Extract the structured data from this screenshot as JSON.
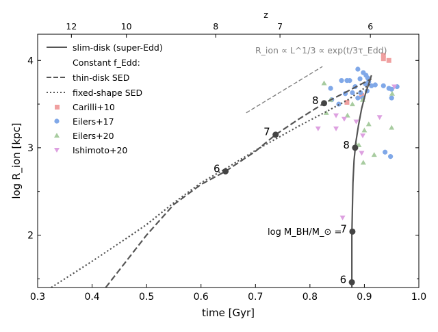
{
  "chart_data": {
    "type": "line",
    "xlabel": "time [Gyr]",
    "ylabel": "log R_ion [kpc]",
    "xlim": [
      0.3,
      1.0
    ],
    "ylim": [
      1.4,
      4.3
    ],
    "x_ticks": [
      "0.3",
      "0.4",
      "0.5",
      "0.6",
      "0.7",
      "0.8",
      "0.9",
      "1.0"
    ],
    "x_tick_values": [
      0.3,
      0.4,
      0.5,
      0.6,
      0.7,
      0.8,
      0.9,
      1.0
    ],
    "y_ticks": [
      "2",
      "3",
      "4"
    ],
    "y_tick_values": [
      2,
      3,
      4
    ],
    "top_axis": {
      "label": "z",
      "ticks": [
        {
          "label": "12",
          "time": 0.362
        },
        {
          "label": "10",
          "time": 0.463
        },
        {
          "label": "8",
          "time": 0.627
        },
        {
          "label": "7",
          "time": 0.745
        },
        {
          "label": "6",
          "time": 0.911
        }
      ]
    },
    "annotation": "R_ion ∝ L^1/3 ∝ exp(t/3τ_Edd)",
    "annotation_line": [
      [
        0.683,
        3.4
      ],
      [
        0.823,
        3.93
      ]
    ],
    "legend": {
      "slim": "slim-disk (super-Edd)",
      "header": "Constant f_Edd:",
      "thin": "thin-disk SED",
      "fixed": "fixed-shape SED",
      "carilli": "Carilli+10",
      "eilers17": "Eilers+17",
      "eilers20": "Eilers+20",
      "ishimoto": "Ishimoto+20"
    },
    "mass_axis_label": "log M_BH/M_⊙ =",
    "series": [
      {
        "name": "slim-disk (super-Edd)",
        "style": "solid",
        "color": "#555555",
        "points": [
          [
            0.877,
            1.4
          ],
          [
            0.877,
            1.7
          ],
          [
            0.877,
            2.0
          ],
          [
            0.878,
            2.3
          ],
          [
            0.879,
            2.6
          ],
          [
            0.881,
            2.85
          ],
          [
            0.884,
            3.05
          ],
          [
            0.889,
            3.25
          ],
          [
            0.895,
            3.45
          ],
          [
            0.902,
            3.62
          ],
          [
            0.909,
            3.75
          ],
          [
            0.913,
            3.83
          ]
        ]
      },
      {
        "name": "thin-disk SED",
        "style": "dashed",
        "color": "#555555",
        "points": [
          [
            0.425,
            1.4
          ],
          [
            0.46,
            1.68
          ],
          [
            0.5,
            2.0
          ],
          [
            0.55,
            2.35
          ],
          [
            0.6,
            2.58
          ],
          [
            0.645,
            2.73
          ],
          [
            0.7,
            2.96
          ],
          [
            0.737,
            3.15
          ],
          [
            0.78,
            3.33
          ],
          [
            0.826,
            3.51
          ],
          [
            0.87,
            3.65
          ],
          [
            0.913,
            3.79
          ]
        ]
      },
      {
        "name": "fixed-shape SED",
        "style": "dotted",
        "color": "#555555",
        "points": [
          [
            0.325,
            1.4
          ],
          [
            0.4,
            1.7
          ],
          [
            0.46,
            1.95
          ],
          [
            0.5,
            2.12
          ],
          [
            0.55,
            2.37
          ],
          [
            0.6,
            2.6
          ],
          [
            0.645,
            2.76
          ],
          [
            0.7,
            2.97
          ],
          [
            0.737,
            3.1
          ],
          [
            0.78,
            3.25
          ],
          [
            0.826,
            3.4
          ],
          [
            0.87,
            3.55
          ],
          [
            0.913,
            3.74
          ]
        ]
      }
    ],
    "mass_markers": [
      {
        "label": "6",
        "x": 0.645,
        "y": 2.73
      },
      {
        "label": "7",
        "x": 0.737,
        "y": 3.15
      },
      {
        "label": "8",
        "x": 0.826,
        "y": 3.51
      },
      {
        "label": "6",
        "x": 0.877,
        "y": 1.46
      },
      {
        "label": "7",
        "x": 0.878,
        "y": 2.04
      },
      {
        "label": "8",
        "x": 0.883,
        "y": 3.0
      }
    ],
    "scatter": [
      {
        "name": "Carilli+10",
        "color": "#f0a0a0",
        "marker": "square",
        "points": [
          [
            0.935,
            4.06
          ],
          [
            0.945,
            4.0
          ],
          [
            0.935,
            4.02
          ],
          [
            0.868,
            3.52
          ],
          [
            0.895,
            3.6
          ]
        ]
      },
      {
        "name": "Eilers+17",
        "color": "#80a8e8",
        "marker": "circle",
        "points": [
          [
            0.888,
            3.9
          ],
          [
            0.898,
            3.86
          ],
          [
            0.903,
            3.83
          ],
          [
            0.906,
            3.8
          ],
          [
            0.908,
            3.76
          ],
          [
            0.913,
            3.71
          ],
          [
            0.892,
            3.79
          ],
          [
            0.902,
            3.73
          ],
          [
            0.873,
            3.77
          ],
          [
            0.858,
            3.77
          ],
          [
            0.868,
            3.77
          ],
          [
            0.883,
            3.7
          ],
          [
            0.878,
            3.63
          ],
          [
            0.893,
            3.63
          ],
          [
            0.897,
            3.57
          ],
          [
            0.905,
            3.65
          ],
          [
            0.92,
            3.72
          ],
          [
            0.935,
            3.71
          ],
          [
            0.945,
            3.68
          ],
          [
            0.95,
            3.67
          ],
          [
            0.96,
            3.7
          ],
          [
            0.95,
            3.57
          ],
          [
            0.888,
            3.57
          ],
          [
            0.865,
            3.62
          ],
          [
            0.838,
            3.68
          ],
          [
            0.853,
            3.5
          ],
          [
            0.84,
            3.55
          ],
          [
            0.938,
            2.95
          ],
          [
            0.948,
            2.9
          ]
        ]
      },
      {
        "name": "Eilers+20",
        "color": "#a8cca0",
        "marker": "triangle-up",
        "points": [
          [
            0.826,
            3.74
          ],
          [
            0.838,
            3.55
          ],
          [
            0.878,
            3.5
          ],
          [
            0.897,
            3.55
          ],
          [
            0.908,
            3.27
          ],
          [
            0.9,
            3.2
          ],
          [
            0.89,
            3.03
          ],
          [
            0.885,
            3.04
          ],
          [
            0.898,
            2.83
          ],
          [
            0.918,
            2.92
          ],
          [
            0.95,
            3.23
          ],
          [
            0.951,
            3.62
          ],
          [
            0.83,
            3.4
          ],
          [
            0.869,
            3.37
          ]
        ]
      },
      {
        "name": "Ishimoto+20",
        "color": "#dda0e0",
        "marker": "triangle-down",
        "points": [
          [
            0.848,
            3.37
          ],
          [
            0.863,
            3.33
          ],
          [
            0.897,
            3.14
          ],
          [
            0.885,
            3.3
          ],
          [
            0.815,
            3.22
          ],
          [
            0.848,
            3.22
          ],
          [
            0.895,
            2.94
          ],
          [
            0.86,
            2.2
          ],
          [
            0.928,
            3.35
          ],
          [
            0.955,
            3.7
          ]
        ]
      }
    ]
  }
}
